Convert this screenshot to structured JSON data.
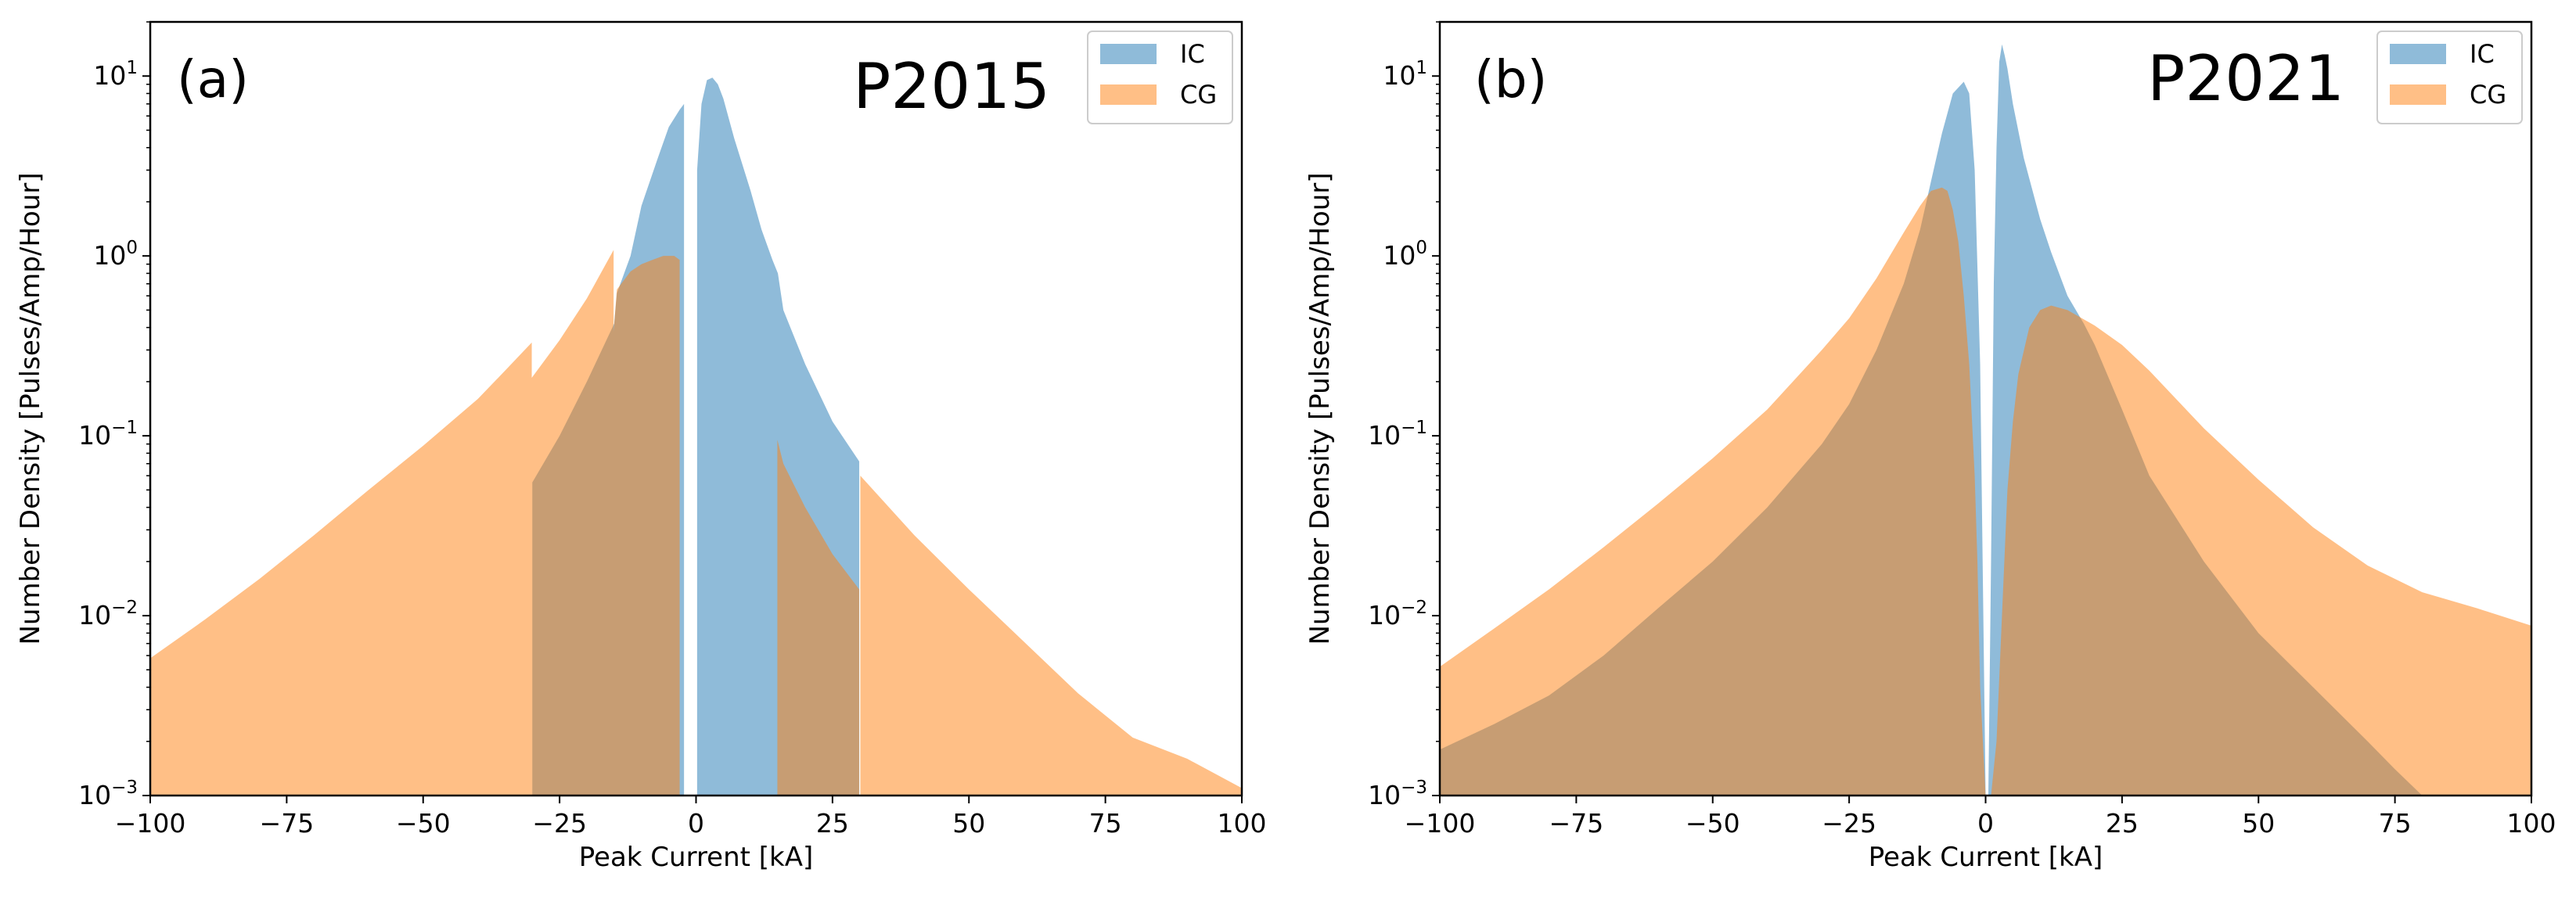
{
  "chart_data": [
    {
      "type": "area",
      "panel_label": "(a)",
      "title": "P2015",
      "xlabel": "Peak Current [kA]",
      "ylabel": "Number Density [Pulses/Amp/Hour]",
      "xlim": [
        -100,
        100
      ],
      "ylim": [
        0.001,
        20
      ],
      "yscale": "log",
      "x_ticks": [
        -100,
        -75,
        -50,
        -25,
        0,
        25,
        50,
        75,
        100
      ],
      "x_tick_labels": [
        "−100",
        "−75",
        "−50",
        "−25",
        "0",
        "25",
        "50",
        "75",
        "100"
      ],
      "y_ticks": [
        0.001,
        0.01,
        0.1,
        1,
        10
      ],
      "y_tick_labels": [
        {
          "base": "10",
          "exp": "−3"
        },
        {
          "base": "10",
          "exp": "−2"
        },
        {
          "base": "10",
          "exp": "−1"
        },
        {
          "base": "10",
          "exp": "0"
        },
        {
          "base": "10",
          "exp": "1"
        }
      ],
      "legend_position": "top-right",
      "series": [
        {
          "name": "IC",
          "color": "#1f77b4",
          "opacity": 0.5,
          "x": [
            -30,
            -30,
            -25,
            -20,
            -15,
            -14.5,
            -12,
            -10,
            -7,
            -5,
            -3,
            -2.2,
            -2.2,
            0.2,
            0.2,
            1,
            2,
            3,
            4,
            5,
            7,
            10,
            12,
            14,
            15,
            16,
            20,
            25,
            29.9,
            29.9
          ],
          "y": [
            0.001,
            0.055,
            0.1,
            0.2,
            0.42,
            0.62,
            1.0,
            1.9,
            3.5,
            5.2,
            6.5,
            7.0,
            0.001,
            0.001,
            3.0,
            7.0,
            9.5,
            9.8,
            9.0,
            7.5,
            4.5,
            2.3,
            1.4,
            0.95,
            0.8,
            0.5,
            0.25,
            0.12,
            0.072,
            0.001
          ]
        },
        {
          "name": "CG",
          "color": "#ff7f0e",
          "opacity": 0.5,
          "x": [
            -100,
            -90,
            -80,
            -70,
            -60,
            -50,
            -40,
            -35,
            -30.1,
            -30.1,
            -25,
            -20,
            -15.1,
            -15.1,
            -14.5,
            -12,
            -10,
            -8,
            -6,
            -4,
            -3,
            -3,
            14.9,
            14.9,
            16,
            20,
            25,
            29.9,
            29.9,
            30.1,
            30.1,
            40,
            50,
            60,
            70,
            80,
            90,
            100
          ],
          "y": [
            0.0058,
            0.0095,
            0.016,
            0.028,
            0.05,
            0.088,
            0.16,
            0.23,
            0.33,
            0.21,
            0.34,
            0.58,
            1.08,
            0.38,
            0.65,
            0.82,
            0.9,
            0.95,
            1.0,
            1.0,
            0.95,
            0.001,
            0.001,
            0.095,
            0.07,
            0.04,
            0.022,
            0.014,
            0.001,
            0.001,
            0.06,
            0.028,
            0.014,
            0.0072,
            0.0037,
            0.0021,
            0.0016,
            0.0011
          ]
        }
      ]
    },
    {
      "type": "area",
      "panel_label": "(b)",
      "title": "P2021",
      "xlabel": "Peak Current [kA]",
      "ylabel": "Number Density [Pulses/Amp/Hour]",
      "xlim": [
        -100,
        100
      ],
      "ylim": [
        0.001,
        20
      ],
      "yscale": "log",
      "x_ticks": [
        -100,
        -75,
        -50,
        -25,
        0,
        25,
        50,
        75,
        100
      ],
      "x_tick_labels": [
        "−100",
        "−75",
        "−50",
        "−25",
        "0",
        "25",
        "50",
        "75",
        "100"
      ],
      "y_ticks": [
        0.001,
        0.01,
        0.1,
        1,
        10
      ],
      "y_tick_labels": [
        {
          "base": "10",
          "exp": "−3"
        },
        {
          "base": "10",
          "exp": "−2"
        },
        {
          "base": "10",
          "exp": "−1"
        },
        {
          "base": "10",
          "exp": "0"
        },
        {
          "base": "10",
          "exp": "1"
        }
      ],
      "legend_position": "top-right",
      "series": [
        {
          "name": "IC",
          "color": "#1f77b4",
          "opacity": 0.5,
          "x": [
            -100,
            -90,
            -80,
            -70,
            -60,
            -50,
            -40,
            -30,
            -25,
            -20,
            -15,
            -12,
            -10,
            -8,
            -6,
            -4,
            -3,
            -2,
            -1,
            0,
            0.5,
            1,
            1.5,
            2,
            2.5,
            3,
            3.5,
            4,
            5,
            7,
            10,
            12,
            15,
            18,
            20,
            25,
            30,
            40,
            50,
            60,
            70,
            75,
            80,
            82
          ],
          "y": [
            0.0018,
            0.0025,
            0.0036,
            0.006,
            0.011,
            0.02,
            0.04,
            0.09,
            0.15,
            0.3,
            0.7,
            1.4,
            2.6,
            4.8,
            8.0,
            9.3,
            8.0,
            3.0,
            0.25,
            0.001,
            0.001,
            0.02,
            0.7,
            4.0,
            12.0,
            15.0,
            13.0,
            11.0,
            7.0,
            3.5,
            1.6,
            1.05,
            0.6,
            0.42,
            0.32,
            0.14,
            0.06,
            0.02,
            0.008,
            0.004,
            0.002,
            0.0014,
            0.001,
            0.001
          ]
        },
        {
          "name": "CG",
          "color": "#ff7f0e",
          "opacity": 0.5,
          "x": [
            -100,
            -90,
            -80,
            -70,
            -60,
            -50,
            -40,
            -30,
            -25,
            -20,
            -15,
            -12,
            -10,
            -8,
            -7,
            -6,
            -5,
            -4,
            -3,
            -2,
            -1.5,
            -1,
            0,
            1,
            2,
            3,
            4,
            5,
            6,
            8,
            10,
            12,
            15,
            20,
            25,
            30,
            40,
            50,
            60,
            70,
            80,
            90,
            100
          ],
          "y": [
            0.0052,
            0.0085,
            0.014,
            0.024,
            0.042,
            0.075,
            0.14,
            0.3,
            0.45,
            0.75,
            1.35,
            1.9,
            2.3,
            2.4,
            2.3,
            1.8,
            1.2,
            0.6,
            0.25,
            0.06,
            0.02,
            0.004,
            0.001,
            0.001,
            0.002,
            0.01,
            0.05,
            0.12,
            0.22,
            0.4,
            0.5,
            0.53,
            0.5,
            0.41,
            0.32,
            0.23,
            0.11,
            0.057,
            0.031,
            0.019,
            0.0135,
            0.011,
            0.0088
          ]
        }
      ]
    }
  ]
}
